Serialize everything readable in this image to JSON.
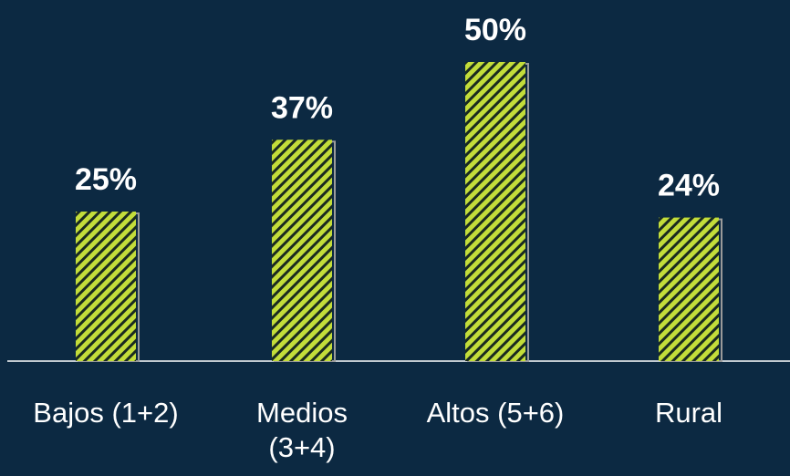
{
  "chart_data": {
    "type": "bar",
    "categories": [
      "Bajos (1+2)",
      "Medios (3+4)",
      "Altos (5+6)",
      "Rural"
    ],
    "values": [
      25,
      37,
      50,
      24
    ],
    "value_labels": [
      "25%",
      "37%",
      "50%",
      "24%"
    ],
    "color": "#c3dd3a"
  }
}
